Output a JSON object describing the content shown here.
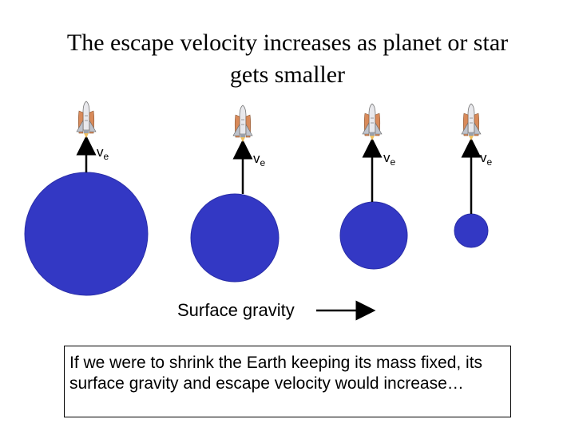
{
  "title": {
    "line1": "The escape velocity increases as planet or star",
    "line2": "gets smaller"
  },
  "velocity_label": {
    "base": "v",
    "subscript": "e"
  },
  "surface_gravity_label": "Surface gravity",
  "caption": "If we were to shrink the Earth keeping its mass fixed, its surface gravity and escape velocity would increase…",
  "colors": {
    "planet": "#3338c4",
    "planet_edge": "#2a2ea8",
    "arrow": "#000000"
  },
  "icons": {
    "rocket": "space-shuttle-icon"
  }
}
